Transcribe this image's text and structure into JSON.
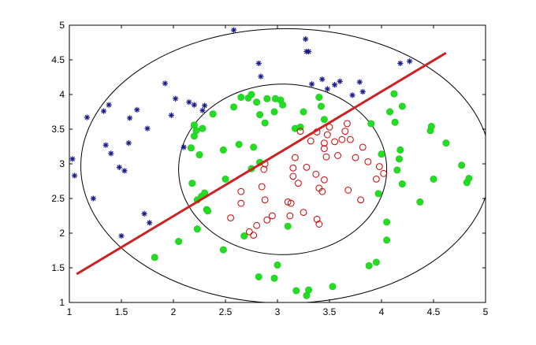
{
  "chart_data": {
    "type": "scatter",
    "title": "",
    "xlabel": "",
    "ylabel": "",
    "xlim": [
      1,
      5
    ],
    "ylim": [
      1,
      5
    ],
    "grid": false,
    "legend": "none",
    "x_ticks": [
      "1",
      "1.5",
      "2",
      "2.5",
      "3",
      "3.5",
      "4",
      "4.5",
      "5"
    ],
    "y_ticks": [
      "1",
      "1.5",
      "2",
      "2.5",
      "3",
      "3.5",
      "4",
      "4.5",
      "5"
    ],
    "series": [
      {
        "marker": "asterisk",
        "color": "#1a1a8c",
        "points": [
          [
            1.03,
            3.07
          ],
          [
            1.05,
            2.83
          ],
          [
            1.17,
            3.67
          ],
          [
            1.23,
            2.5
          ],
          [
            1.33,
            3.76
          ],
          [
            1.35,
            3.27
          ],
          [
            1.38,
            3.85
          ],
          [
            1.4,
            3.15
          ],
          [
            1.48,
            2.95
          ],
          [
            1.5,
            1.96
          ],
          [
            1.53,
            2.9
          ],
          [
            1.57,
            3.3
          ],
          [
            1.58,
            3.66
          ],
          [
            1.65,
            3.78
          ],
          [
            1.72,
            2.28
          ],
          [
            1.75,
            3.51
          ],
          [
            1.77,
            2.15
          ],
          [
            1.92,
            4.16
          ],
          [
            1.98,
            3.7
          ],
          [
            2.02,
            3.94
          ],
          [
            2.1,
            3.24
          ],
          [
            2.15,
            3.89
          ],
          [
            2.2,
            3.85
          ],
          [
            2.28,
            3.77
          ],
          [
            2.3,
            3.84
          ],
          [
            2.58,
            4.93
          ],
          [
            2.82,
            4.45
          ],
          [
            2.84,
            4.26
          ],
          [
            3.27,
            4.8
          ],
          [
            3.28,
            4.62
          ],
          [
            3.3,
            4.62
          ],
          [
            3.33,
            4.15
          ],
          [
            3.43,
            4.22
          ],
          [
            3.48,
            4.08
          ],
          [
            3.55,
            4.14
          ],
          [
            3.6,
            4.19
          ],
          [
            3.72,
            3.99
          ],
          [
            3.79,
            4.18
          ],
          [
            3.82,
            4.04
          ],
          [
            4.18,
            4.45
          ],
          [
            4.27,
            4.48
          ]
        ]
      },
      {
        "marker": "filled-circle",
        "color": "#22dd22",
        "points": [
          [
            1.82,
            1.65
          ],
          [
            2.05,
            1.88
          ],
          [
            2.17,
            3.23
          ],
          [
            2.18,
            2.72
          ],
          [
            2.2,
            3.4
          ],
          [
            2.2,
            3.56
          ],
          [
            2.22,
            3.48
          ],
          [
            2.23,
            2.06
          ],
          [
            2.23,
            2.48
          ],
          [
            2.25,
            3.13
          ],
          [
            2.27,
            2.53
          ],
          [
            2.28,
            3.51
          ],
          [
            2.3,
            2.58
          ],
          [
            2.32,
            2.34
          ],
          [
            2.33,
            2.32
          ],
          [
            2.38,
            3.72
          ],
          [
            2.48,
            1.76
          ],
          [
            2.48,
            3.2
          ],
          [
            2.5,
            2.78
          ],
          [
            2.58,
            3.82
          ],
          [
            2.63,
            3.28
          ],
          [
            2.65,
            3.96
          ],
          [
            2.68,
            1.96
          ],
          [
            2.72,
            3.95
          ],
          [
            2.75,
            4.0
          ],
          [
            2.75,
            2.93
          ],
          [
            2.77,
            3.24
          ],
          [
            2.8,
            3.89
          ],
          [
            2.82,
            1.37
          ],
          [
            2.83,
            3.02
          ],
          [
            2.83,
            3.71
          ],
          [
            2.88,
            3.59
          ],
          [
            2.9,
            3.94
          ],
          [
            2.97,
            3.75
          ],
          [
            2.97,
            1.35
          ],
          [
            2.98,
            3.94
          ],
          [
            3.0,
            1.54
          ],
          [
            3.03,
            3.92
          ],
          [
            3.05,
            3.85
          ],
          [
            3.1,
            2.1
          ],
          [
            3.17,
            3.51
          ],
          [
            3.18,
            1.17
          ],
          [
            3.22,
            3.53
          ],
          [
            3.25,
            3.75
          ],
          [
            3.28,
            1.1
          ],
          [
            3.3,
            1.18
          ],
          [
            3.4,
            3.96
          ],
          [
            3.42,
            3.83
          ],
          [
            3.45,
            3.64
          ],
          [
            3.53,
            1.23
          ],
          [
            3.88,
            1.53
          ],
          [
            3.9,
            3.58
          ],
          [
            3.95,
            1.58
          ],
          [
            3.97,
            2.57
          ],
          [
            4.0,
            3.14
          ],
          [
            4.05,
            1.9
          ],
          [
            4.05,
            2.16
          ],
          [
            4.08,
            3.75
          ],
          [
            4.12,
            4.01
          ],
          [
            4.13,
            3.6
          ],
          [
            4.15,
            2.91
          ],
          [
            4.17,
            3.07
          ],
          [
            4.18,
            3.2
          ],
          [
            4.2,
            3.83
          ],
          [
            4.2,
            2.71
          ],
          [
            4.37,
            2.45
          ],
          [
            4.47,
            3.48
          ],
          [
            4.48,
            3.54
          ],
          [
            4.5,
            2.78
          ],
          [
            4.62,
            3.3
          ],
          [
            4.77,
            2.98
          ],
          [
            4.82,
            2.73
          ],
          [
            4.84,
            2.79
          ]
        ]
      },
      {
        "marker": "open-circle",
        "color": "#cc0000",
        "points": [
          [
            2.55,
            2.22
          ],
          [
            2.65,
            2.43
          ],
          [
            2.65,
            2.6
          ],
          [
            2.73,
            2.02
          ],
          [
            2.77,
            1.97
          ],
          [
            2.8,
            2.11
          ],
          [
            2.85,
            2.67
          ],
          [
            2.87,
            2.92
          ],
          [
            2.88,
            3.0
          ],
          [
            2.88,
            2.48
          ],
          [
            2.9,
            2.19
          ],
          [
            2.95,
            2.25
          ],
          [
            3.1,
            2.45
          ],
          [
            3.12,
            2.25
          ],
          [
            3.13,
            2.43
          ],
          [
            3.15,
            2.94
          ],
          [
            3.15,
            2.82
          ],
          [
            3.17,
            3.09
          ],
          [
            3.2,
            2.72
          ],
          [
            3.22,
            3.47
          ],
          [
            3.25,
            2.3
          ],
          [
            3.28,
            2.95
          ],
          [
            3.32,
            3.33
          ],
          [
            3.37,
            2.85
          ],
          [
            3.38,
            2.2
          ],
          [
            3.38,
            3.46
          ],
          [
            3.4,
            2.13
          ],
          [
            3.4,
            2.65
          ],
          [
            3.43,
            2.6
          ],
          [
            3.45,
            3.22
          ],
          [
            3.45,
            2.77
          ],
          [
            3.45,
            3.3
          ],
          [
            3.47,
            3.1
          ],
          [
            3.48,
            3.42
          ],
          [
            3.5,
            3.53
          ],
          [
            3.55,
            3.32
          ],
          [
            3.58,
            3.12
          ],
          [
            3.62,
            3.35
          ],
          [
            3.65,
            3.47
          ],
          [
            3.67,
            3.58
          ],
          [
            3.68,
            2.62
          ],
          [
            3.7,
            3.35
          ],
          [
            3.75,
            3.09
          ],
          [
            3.8,
            2.48
          ],
          [
            3.82,
            3.24
          ],
          [
            3.87,
            3.03
          ],
          [
            3.95,
            2.78
          ],
          [
            3.98,
            2.96
          ],
          [
            4.02,
            2.86
          ]
        ]
      }
    ],
    "line": {
      "color": "#cc2222",
      "points": [
        [
          1.07,
          1.41
        ],
        [
          4.62,
          4.6
        ]
      ]
    },
    "ellipses": [
      {
        "center": [
          3.08,
          2.97
        ],
        "radii": [
          1.97,
          1.98
        ],
        "color": "#000000"
      },
      {
        "center": [
          3.05,
          2.92
        ],
        "radii": [
          1.0,
          1.23
        ],
        "color": "#000000"
      }
    ]
  }
}
